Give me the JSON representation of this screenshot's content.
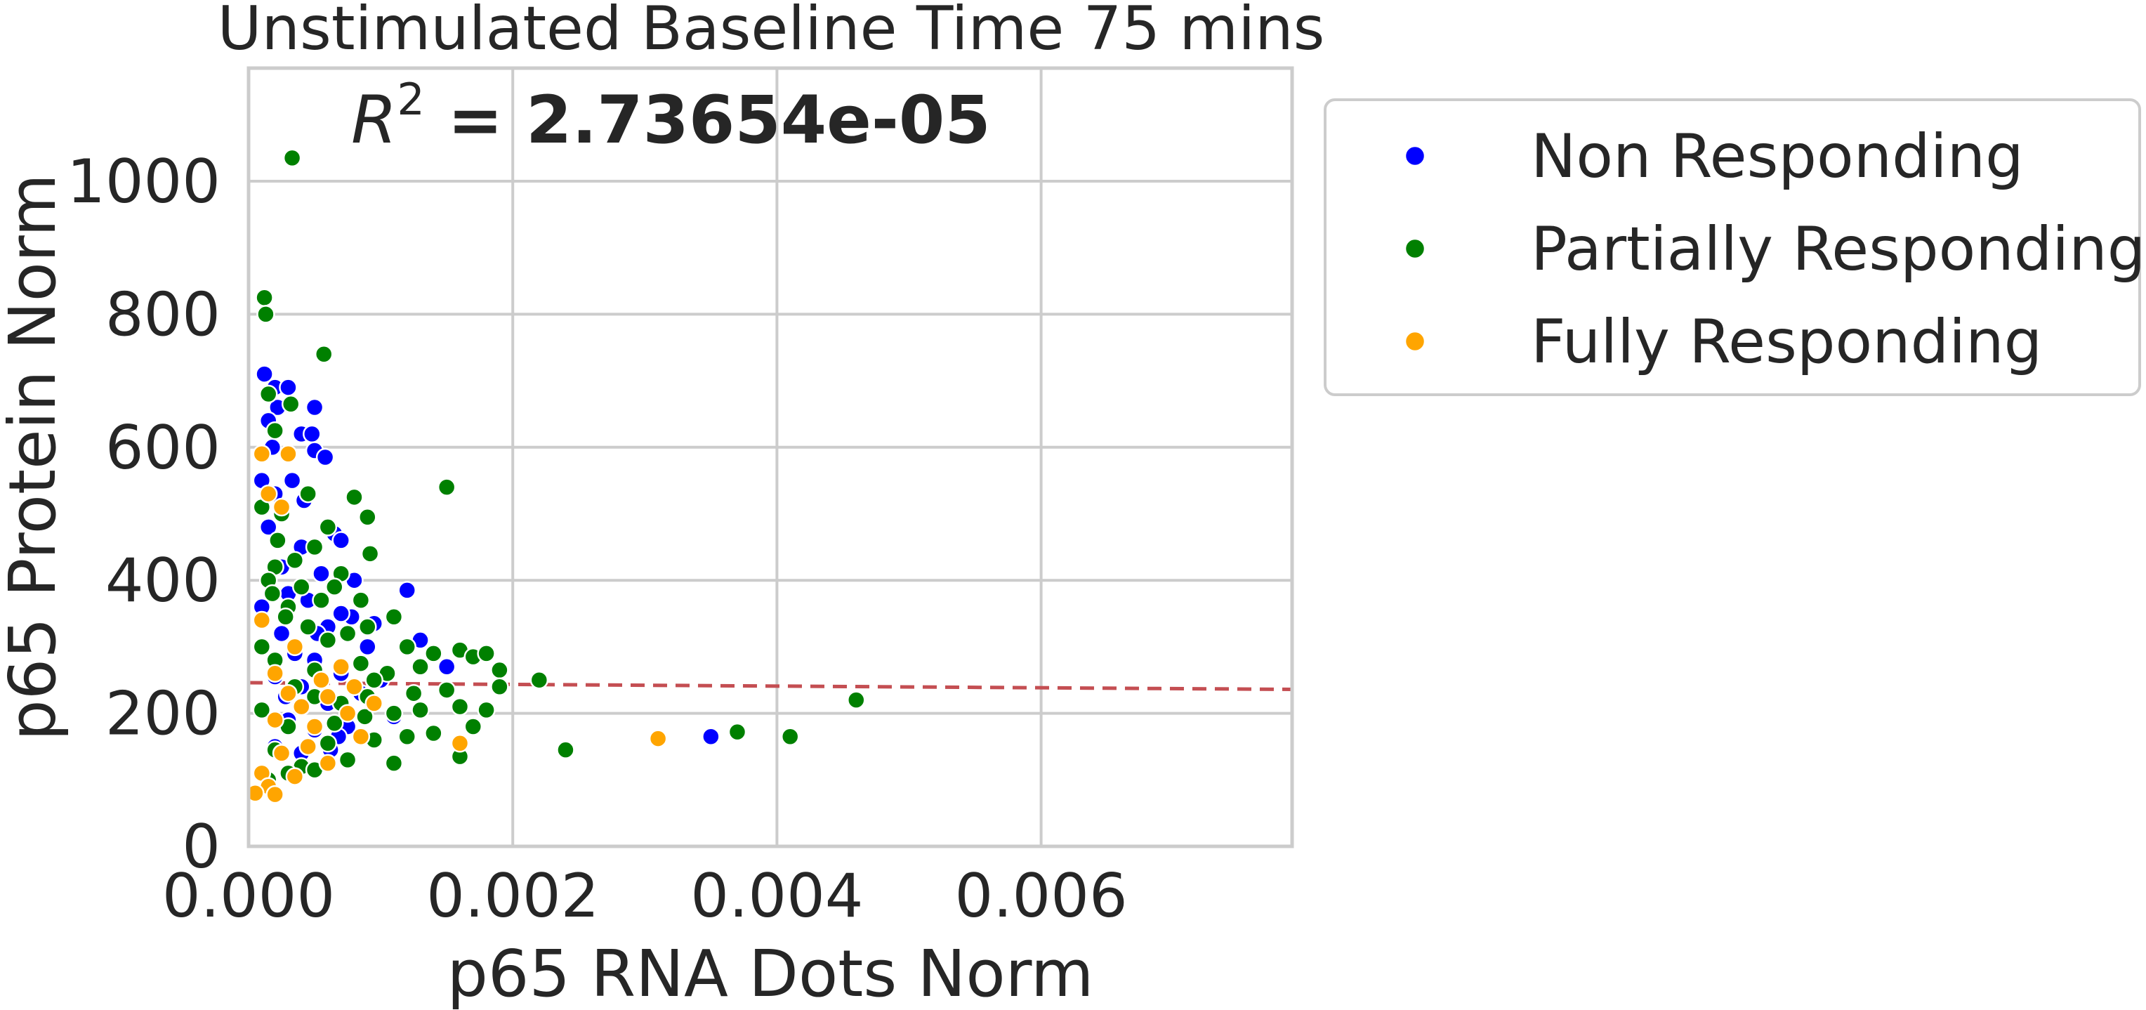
{
  "chart_data": {
    "type": "scatter",
    "title": "Unstimulated Baseline Time 75 mins",
    "xlabel": "p65 RNA Dots Norm",
    "ylabel": "p65 Protein Norm",
    "xlim": [
      0,
      0.0079
    ],
    "ylim": [
      0,
      1170
    ],
    "xticks": [
      0.0,
      0.002,
      0.004,
      0.006
    ],
    "xtick_labels": [
      "0.000",
      "0.002",
      "0.004",
      "0.006"
    ],
    "yticks": [
      0,
      200,
      400,
      600,
      800,
      1000
    ],
    "ytick_labels": [
      "0",
      "200",
      "400",
      "600",
      "800",
      "1000"
    ],
    "grid": true,
    "legend_position": "outside-right",
    "annotation": {
      "italic": "R",
      "superscript": "2",
      "bold": " = 2.73654e-05"
    },
    "regression": {
      "points": [
        [
          0.0,
          246
        ],
        [
          0.0079,
          236
        ]
      ],
      "color": "#c44e52",
      "style": "dashed"
    },
    "series": [
      {
        "name": "Non Responding",
        "color": "#0000ff",
        "points": [
          [
            0.00012,
            710
          ],
          [
            0.0002,
            690
          ],
          [
            0.0003,
            690
          ],
          [
            0.00022,
            660
          ],
          [
            0.0005,
            660
          ],
          [
            0.00015,
            640
          ],
          [
            0.0004,
            620
          ],
          [
            0.00048,
            620
          ],
          [
            0.0005,
            595
          ],
          [
            0.00058,
            585
          ],
          [
            0.00033,
            550
          ],
          [
            0.0001,
            550
          ],
          [
            0.0002,
            530
          ],
          [
            0.00065,
            470
          ],
          [
            0.0007,
            460
          ],
          [
            0.0006,
            480
          ],
          [
            0.00015,
            480
          ],
          [
            0.0004,
            450
          ],
          [
            0.00025,
            420
          ],
          [
            0.00055,
            410
          ],
          [
            0.0008,
            400
          ],
          [
            0.0012,
            385
          ],
          [
            0.0003,
            380
          ],
          [
            0.00045,
            370
          ],
          [
            0.00078,
            345
          ],
          [
            0.00095,
            335
          ],
          [
            0.0006,
            330
          ],
          [
            0.00025,
            320
          ],
          [
            0.0013,
            310
          ],
          [
            0.0009,
            300
          ],
          [
            0.00035,
            290
          ],
          [
            0.0005,
            280
          ],
          [
            0.0015,
            270
          ],
          [
            0.0007,
            260
          ],
          [
            0.0002,
            255
          ],
          [
            0.001,
            250
          ],
          [
            0.0004,
            240
          ],
          [
            0.00085,
            230
          ],
          [
            0.00028,
            225
          ],
          [
            0.0006,
            215
          ],
          [
            0.0011,
            195
          ],
          [
            0.0003,
            190
          ],
          [
            0.00075,
            180
          ],
          [
            0.0005,
            175
          ],
          [
            0.00068,
            165
          ],
          [
            0.00095,
            160
          ],
          [
            0.0002,
            150
          ],
          [
            0.00062,
            145
          ],
          [
            0.0004,
            140
          ],
          [
            0.0035,
            165
          ],
          [
            0.0001,
            360
          ],
          [
            0.0007,
            350
          ],
          [
            0.00018,
            600
          ],
          [
            0.00042,
            520
          ],
          [
            0.00052,
            320
          ]
        ]
      },
      {
        "name": "Partially Responding",
        "color": "#008000",
        "points": [
          [
            0.00033,
            1035
          ],
          [
            0.00012,
            825
          ],
          [
            0.00013,
            800
          ],
          [
            0.00057,
            740
          ],
          [
            0.00015,
            680
          ],
          [
            0.00032,
            665
          ],
          [
            0.0002,
            625
          ],
          [
            0.00045,
            530
          ],
          [
            0.0008,
            525
          ],
          [
            0.0015,
            540
          ],
          [
            0.0001,
            510
          ],
          [
            0.00025,
            500
          ],
          [
            0.0006,
            480
          ],
          [
            0.0005,
            450
          ],
          [
            0.0009,
            495
          ],
          [
            0.00092,
            440
          ],
          [
            0.00035,
            430
          ],
          [
            0.0002,
            420
          ],
          [
            0.0007,
            410
          ],
          [
            0.00015,
            400
          ],
          [
            0.0004,
            390
          ],
          [
            0.00055,
            370
          ],
          [
            0.0003,
            360
          ],
          [
            0.0011,
            345
          ],
          [
            0.0009,
            330
          ],
          [
            0.00075,
            320
          ],
          [
            0.0006,
            310
          ],
          [
            0.0012,
            300
          ],
          [
            0.0014,
            290
          ],
          [
            0.0016,
            295
          ],
          [
            0.0017,
            285
          ],
          [
            0.0018,
            290
          ],
          [
            0.0019,
            265
          ],
          [
            0.0013,
            270
          ],
          [
            0.00105,
            260
          ],
          [
            0.00085,
            275
          ],
          [
            0.0002,
            280
          ],
          [
            0.0005,
            265
          ],
          [
            0.0022,
            250
          ],
          [
            0.0019,
            240
          ],
          [
            0.0015,
            235
          ],
          [
            0.00125,
            230
          ],
          [
            0.0009,
            225
          ],
          [
            0.0007,
            215
          ],
          [
            0.0004,
            210
          ],
          [
            0.0001,
            205
          ],
          [
            0.0016,
            210
          ],
          [
            0.0018,
            205
          ],
          [
            0.0011,
            200
          ],
          [
            0.00088,
            195
          ],
          [
            0.00065,
            185
          ],
          [
            0.0003,
            180
          ],
          [
            0.0017,
            180
          ],
          [
            0.0014,
            170
          ],
          [
            0.0012,
            165
          ],
          [
            0.00095,
            160
          ],
          [
            0.0006,
            155
          ],
          [
            0.0002,
            145
          ],
          [
            0.0016,
            135
          ],
          [
            0.0011,
            125
          ],
          [
            0.00075,
            130
          ],
          [
            0.0004,
            120
          ],
          [
            0.0003,
            110
          ],
          [
            0.00015,
            100
          ],
          [
            0.0005,
            115
          ],
          [
            0.0024,
            145
          ],
          [
            0.0037,
            172
          ],
          [
            0.0041,
            165
          ],
          [
            0.0046,
            220
          ],
          [
            0.0001,
            300
          ],
          [
            0.00035,
            240
          ],
          [
            0.00045,
            330
          ],
          [
            0.00022,
            460
          ],
          [
            0.00065,
            390
          ],
          [
            0.00085,
            370
          ],
          [
            0.00028,
            345
          ],
          [
            0.0005,
            225
          ],
          [
            0.00095,
            250
          ],
          [
            0.0013,
            205
          ],
          [
            0.00018,
            380
          ]
        ]
      },
      {
        "name": "Fully Responding",
        "color": "#ffa500",
        "points": [
          [
            0.0001,
            590
          ],
          [
            0.0003,
            590
          ],
          [
            0.00015,
            530
          ],
          [
            0.00025,
            510
          ],
          [
            0.0001,
            340
          ],
          [
            0.00035,
            300
          ],
          [
            0.0002,
            260
          ],
          [
            0.00055,
            250
          ],
          [
            0.0008,
            240
          ],
          [
            0.0006,
            225
          ],
          [
            0.00095,
            215
          ],
          [
            0.0004,
            210
          ],
          [
            0.00075,
            200
          ],
          [
            0.0002,
            190
          ],
          [
            0.0005,
            180
          ],
          [
            0.0016,
            155
          ],
          [
            0.00085,
            165
          ],
          [
            0.00025,
            140
          ],
          [
            0.0006,
            125
          ],
          [
            0.0001,
            110
          ],
          [
            0.00035,
            105
          ],
          [
            0.00015,
            90
          ],
          [
            5e-05,
            80
          ],
          [
            0.0002,
            78
          ],
          [
            0.0031,
            162
          ],
          [
            0.00045,
            150
          ],
          [
            0.0003,
            230
          ],
          [
            0.0007,
            270
          ]
        ]
      }
    ]
  }
}
